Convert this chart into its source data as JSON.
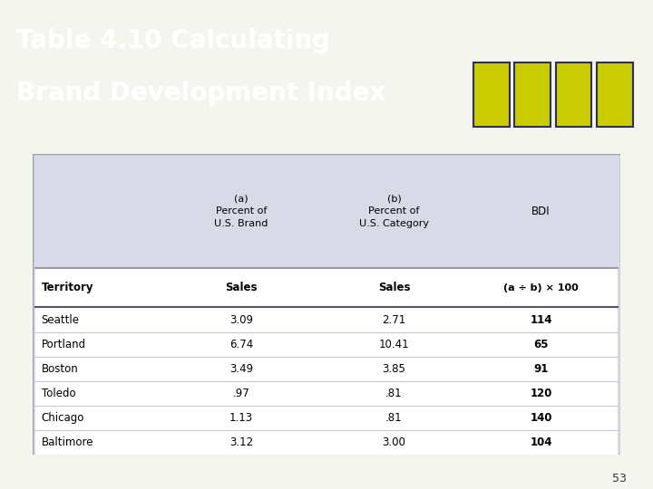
{
  "title_line1": "Table 4.10 Calculating",
  "title_line2": "Brand Development Index",
  "title_bg_color": "#2D2D6B",
  "title_text_color": "#FFFFFF",
  "square_color": "#C8CC00",
  "table_bg_color": "#D8DAE8",
  "table_border_color": "#999AAA",
  "white_bg": "#FFFFFF",
  "slide_bg_color": "#F5F5F0",
  "header1_col2": "(a)\nPercent of\nU.S. Brand",
  "header1_col3": "(b)\nPercent of\nU.S. Category",
  "header1_col4": "BDI",
  "header2_col1": "Territory",
  "header2_col2": "Sales",
  "header2_col3": "Sales",
  "header2_col4": "(a ÷ b) × 100",
  "rows": [
    [
      "Seattle",
      "3.09",
      "2.71",
      "114"
    ],
    [
      "Portland",
      "6.74",
      "10.41",
      "65"
    ],
    [
      "Boston",
      "3.49",
      "3.85",
      "91"
    ],
    [
      "Toledo",
      ".97",
      ".81",
      "120"
    ],
    [
      "Chicago",
      "1.13",
      ".81",
      "140"
    ],
    [
      "Baltimore",
      "3.12",
      "3.00",
      "104"
    ]
  ],
  "page_number": "53"
}
